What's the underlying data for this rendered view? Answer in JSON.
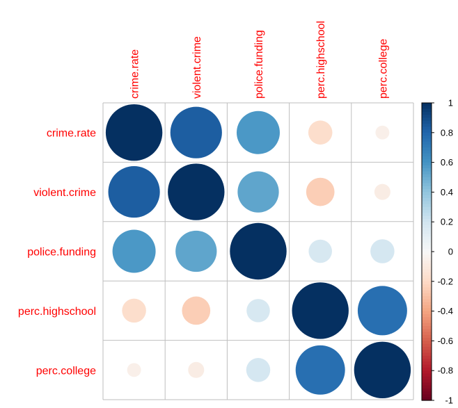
{
  "chart_data": {
    "type": "heatmap",
    "subtype": "correlation-circles",
    "variables": [
      "crime.rate",
      "violent.crime",
      "police.funding",
      "perc.highschool",
      "perc.college"
    ],
    "matrix": [
      [
        1.0,
        0.83,
        0.58,
        -0.18,
        -0.06
      ],
      [
        0.83,
        1.0,
        0.53,
        -0.25,
        -0.08
      ],
      [
        0.58,
        0.53,
        1.0,
        0.17,
        0.18
      ],
      [
        -0.18,
        -0.25,
        0.17,
        1.0,
        0.76
      ],
      [
        -0.06,
        -0.08,
        0.18,
        0.76,
        1.0
      ]
    ],
    "colorbar": {
      "range": [
        -1,
        1
      ],
      "tick_labels": [
        "1",
        "0.8",
        "0.6",
        "0.4",
        "0.2",
        "0",
        "-0.2",
        "-0.4",
        "-0.6",
        "-0.8",
        "-1"
      ],
      "tick_values": [
        1,
        0.8,
        0.6,
        0.4,
        0.2,
        0,
        -0.2,
        -0.4,
        -0.6,
        -0.8,
        -1
      ],
      "placement": "right"
    },
    "colors": {
      "label": "#ff0000",
      "grid": "#bebebe",
      "negative_end": "#67001f",
      "positive_end": "#053061",
      "neutral": "#f7f7f7"
    },
    "grid": true
  }
}
